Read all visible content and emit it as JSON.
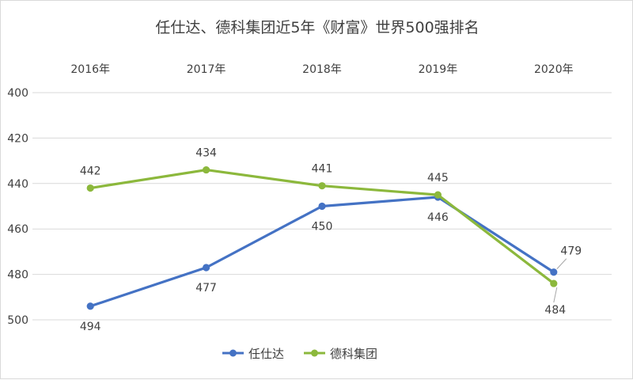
{
  "chart_data": {
    "type": "line",
    "title": "任仕达、德科集团近5年《财富》世界500强排名",
    "categories": [
      "2016年",
      "2017年",
      "2018年",
      "2019年",
      "2020年"
    ],
    "ylim": [
      400,
      500
    ],
    "y_reversed": true,
    "yticks": [
      400,
      420,
      440,
      460,
      480,
      500
    ],
    "grid": true,
    "legend_position": "bottom",
    "series": [
      {
        "name": "任仕达",
        "color": "#4472c4",
        "values": [
          494,
          477,
          450,
          446,
          479
        ],
        "label_side": [
          "below",
          "below",
          "below",
          "below",
          "above"
        ]
      },
      {
        "name": "德科集团",
        "color": "#8cb83c",
        "values": [
          442,
          434,
          441,
          445,
          484
        ],
        "label_side": [
          "above",
          "above",
          "above",
          "above",
          "below"
        ]
      }
    ]
  }
}
